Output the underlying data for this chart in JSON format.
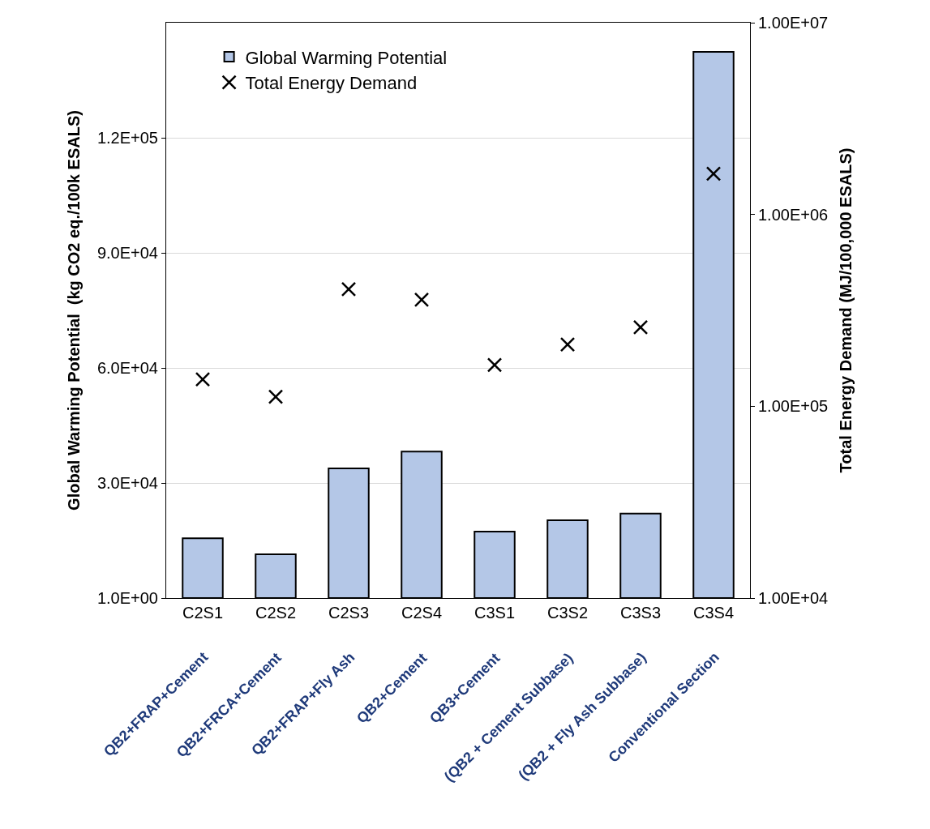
{
  "chart_data": {
    "type": "bar",
    "categories": [
      "C2S1",
      "C2S2",
      "C2S3",
      "C2S4",
      "C3S1",
      "C3S2",
      "C3S3",
      "C3S4"
    ],
    "ylabel": "Global Warming Potential  (kg CO2 eq./100k ESALS)",
    "y2label": "Total Energy Demand (MJ/100,000 ESALS)",
    "series": [
      {
        "name": "Global Warming Potential",
        "color": "#b4c7e7",
        "values": [
          15600,
          11400,
          33800,
          38200,
          17300,
          20300,
          22000,
          142400
        ]
      },
      {
        "name": "Total Energy Demand",
        "type": "scatter",
        "axis": "y2",
        "marker": "cross",
        "color": "#000000",
        "values": [
          138000,
          112000,
          408000,
          359000,
          164000,
          210000,
          258000,
          1630000
        ]
      }
    ],
    "ylim": [
      1,
      150000
    ],
    "yticks": [
      {
        "value": 1,
        "label": "1.0E+00"
      },
      {
        "value": 30000,
        "label": "3.0E+04"
      },
      {
        "value": 60000,
        "label": "6.0E+04"
      },
      {
        "value": 90000,
        "label": "9.0E+04"
      },
      {
        "value": 120000,
        "label": "1.2E+05"
      }
    ],
    "y2lim": [
      10000,
      10000000
    ],
    "y2ticks": [
      {
        "value": 10000,
        "label": "1.00E+04"
      },
      {
        "value": 100000,
        "label": "1.00E+05"
      },
      {
        "value": 1000000,
        "label": "1.00E+06"
      },
      {
        "value": 10000000,
        "label": "1.00E+07"
      }
    ],
    "log": "y2",
    "grid": "y",
    "legend": "top left",
    "annotations": [
      "QB2+FRAP+Cement",
      "QB2+FRCA+Cement",
      "QB2+FRAP+Fly Ash",
      "QB2+Cement",
      "QB3+Cement",
      "(QB2 + Cement Subbase)",
      "(QB2 + Fly Ash Subbase)",
      "Conventional Section"
    ]
  }
}
